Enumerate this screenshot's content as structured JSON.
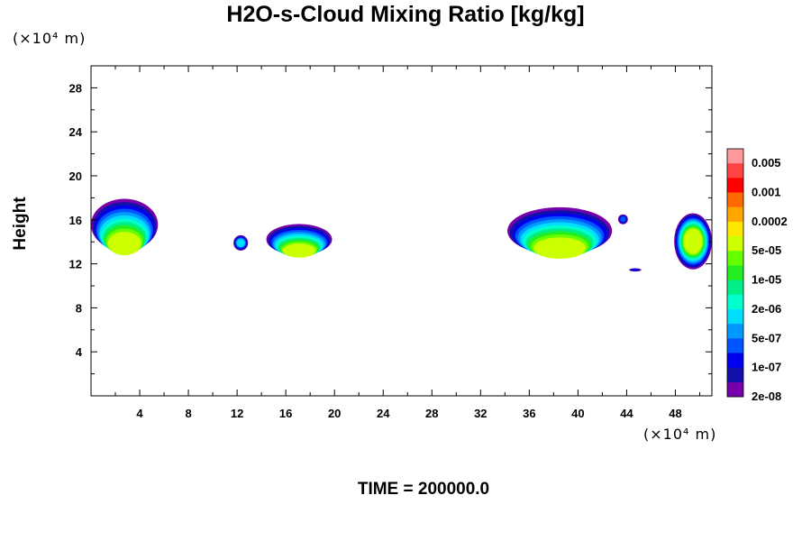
{
  "chart_data": {
    "type": "contour",
    "title": "H2O-s-Cloud Mixing Ratio [kg/kg]",
    "ylabel": "Height",
    "y_unit": "(×10⁴ m)",
    "x_unit": "(×10⁴ m)",
    "footer": "TIME = 200000.0",
    "xlim": [
      0,
      51
    ],
    "ylim": [
      0,
      30
    ],
    "x_ticks": [
      4,
      8,
      12,
      16,
      20,
      24,
      28,
      32,
      36,
      40,
      44,
      48
    ],
    "y_ticks": [
      4,
      8,
      12,
      16,
      20,
      24,
      28
    ],
    "colorbar": {
      "labels": [
        "0.005",
        "0.001",
        "0.0002",
        "5e-05",
        "1e-05",
        "2e-06",
        "5e-07",
        "1e-07",
        "2e-08"
      ],
      "colors_top_to_bottom": [
        "#ff9999",
        "#ff4444",
        "#ff0000",
        "#ff6a00",
        "#ffa500",
        "#ffe600",
        "#ccff00",
        "#66ff00",
        "#22ee22",
        "#00ee88",
        "#00ffcc",
        "#00ddff",
        "#0099ff",
        "#0055ff",
        "#0000ee",
        "#1111aa",
        "#7700aa"
      ]
    },
    "cloud_regions": [
      {
        "name": "left-anvil",
        "x": [
          0,
          5.5
        ],
        "y": [
          12.5,
          17.2
        ]
      },
      {
        "name": "mid-cloud-a",
        "x": [
          11.7,
          12.9
        ],
        "y": [
          13.2,
          14.6
        ]
      },
      {
        "name": "mid-cloud-b",
        "x": [
          14.4,
          19.8
        ],
        "y": [
          12.4,
          15.2
        ]
      },
      {
        "name": "right-anvil",
        "x": [
          34.2,
          42.8
        ],
        "y": [
          12.2,
          16.5
        ]
      },
      {
        "name": "small-cap",
        "x": [
          43.3,
          44.1
        ],
        "y": [
          15.6,
          16.5
        ]
      },
      {
        "name": "low-thin",
        "x": [
          44.2,
          45.2
        ],
        "y": [
          11.3,
          11.6
        ]
      },
      {
        "name": "edge-right",
        "x": [
          47.9,
          51
        ],
        "y": [
          11.5,
          16.6
        ]
      }
    ]
  }
}
